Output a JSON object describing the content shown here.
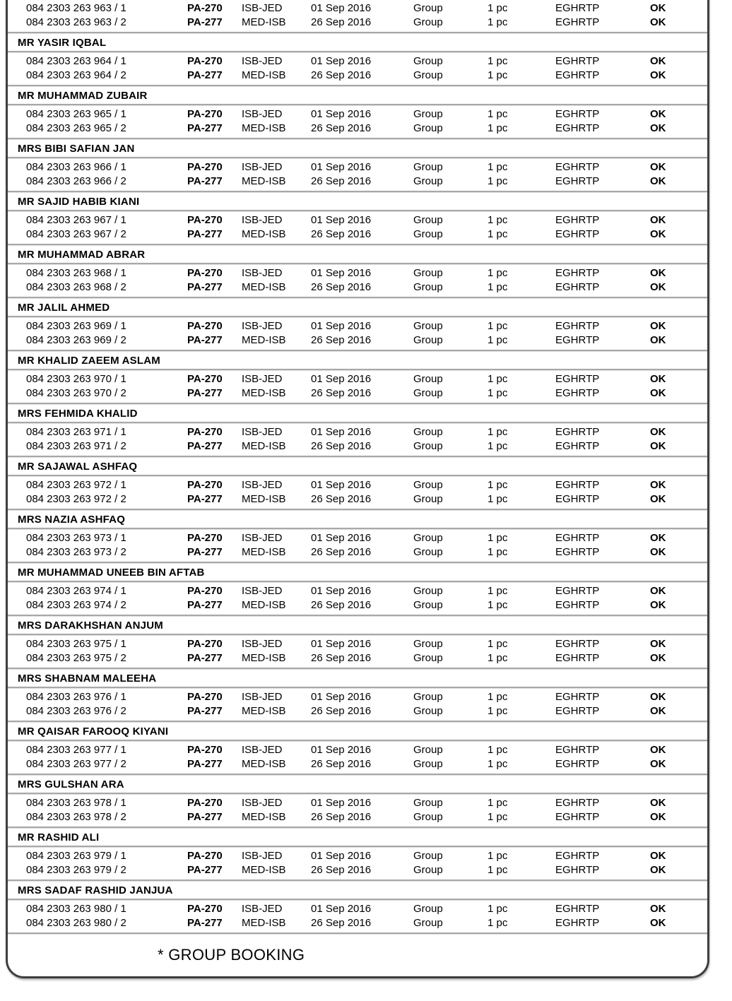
{
  "document": {
    "footer_note": "* GROUP BOOKING",
    "sections": [
      {
        "name": "",
        "rows": [
          {
            "ticket": "084 2303 263 963 / 1",
            "flight": "PA-270",
            "route": "ISB-JED",
            "date": "01 Sep 2016",
            "type": "Group",
            "pieces": "1 pc",
            "fare_basis": "EGHRTP",
            "status": "OK"
          },
          {
            "ticket": "084 2303 263 963 / 2",
            "flight": "PA-277",
            "route": "MED-ISB",
            "date": "26 Sep 2016",
            "type": "Group",
            "pieces": "1 pc",
            "fare_basis": "EGHRTP",
            "status": "OK"
          }
        ]
      },
      {
        "name": "MR YASIR IQBAL",
        "rows": [
          {
            "ticket": "084 2303 263 964 / 1",
            "flight": "PA-270",
            "route": "ISB-JED",
            "date": "01 Sep 2016",
            "type": "Group",
            "pieces": "1 pc",
            "fare_basis": "EGHRTP",
            "status": "OK"
          },
          {
            "ticket": "084 2303 263 964 / 2",
            "flight": "PA-277",
            "route": "MED-ISB",
            "date": "26 Sep 2016",
            "type": "Group",
            "pieces": "1 pc",
            "fare_basis": "EGHRTP",
            "status": "OK"
          }
        ]
      },
      {
        "name": "MR MUHAMMAD ZUBAIR",
        "rows": [
          {
            "ticket": "084 2303 263 965 / 1",
            "flight": "PA-270",
            "route": "ISB-JED",
            "date": "01 Sep 2016",
            "type": "Group",
            "pieces": "1 pc",
            "fare_basis": "EGHRTP",
            "status": "OK"
          },
          {
            "ticket": "084 2303 263 965 / 2",
            "flight": "PA-277",
            "route": "MED-ISB",
            "date": "26 Sep 2016",
            "type": "Group",
            "pieces": "1 pc",
            "fare_basis": "EGHRTP",
            "status": "OK"
          }
        ]
      },
      {
        "name": "MRS BIBI SAFIAN JAN",
        "rows": [
          {
            "ticket": "084 2303 263 966 / 1",
            "flight": "PA-270",
            "route": "ISB-JED",
            "date": "01 Sep 2016",
            "type": "Group",
            "pieces": "1 pc",
            "fare_basis": "EGHRTP",
            "status": "OK"
          },
          {
            "ticket": "084 2303 263 966 / 2",
            "flight": "PA-277",
            "route": "MED-ISB",
            "date": "26 Sep 2016",
            "type": "Group",
            "pieces": "1 pc",
            "fare_basis": "EGHRTP",
            "status": "OK"
          }
        ]
      },
      {
        "name": "MR SAJID HABIB KIANI",
        "rows": [
          {
            "ticket": "084 2303 263 967 / 1",
            "flight": "PA-270",
            "route": "ISB-JED",
            "date": "01 Sep 2016",
            "type": "Group",
            "pieces": "1 pc",
            "fare_basis": "EGHRTP",
            "status": "OK"
          },
          {
            "ticket": "084 2303 263 967 / 2",
            "flight": "PA-277",
            "route": "MED-ISB",
            "date": "26 Sep 2016",
            "type": "Group",
            "pieces": "1 pc",
            "fare_basis": "EGHRTP",
            "status": "OK"
          }
        ]
      },
      {
        "name": "MR MUHAMMAD ABRAR",
        "rows": [
          {
            "ticket": "084 2303 263 968 / 1",
            "flight": "PA-270",
            "route": "ISB-JED",
            "date": "01 Sep 2016",
            "type": "Group",
            "pieces": "1 pc",
            "fare_basis": "EGHRTP",
            "status": "OK"
          },
          {
            "ticket": "084 2303 263 968 / 2",
            "flight": "PA-277",
            "route": "MED-ISB",
            "date": "26 Sep 2016",
            "type": "Group",
            "pieces": "1 pc",
            "fare_basis": "EGHRTP",
            "status": "OK"
          }
        ]
      },
      {
        "name": "MR JALIL AHMED",
        "rows": [
          {
            "ticket": "084 2303 263 969 / 1",
            "flight": "PA-270",
            "route": "ISB-JED",
            "date": "01 Sep 2016",
            "type": "Group",
            "pieces": "1 pc",
            "fare_basis": "EGHRTP",
            "status": "OK"
          },
          {
            "ticket": "084 2303 263 969 / 2",
            "flight": "PA-277",
            "route": "MED-ISB",
            "date": "26 Sep 2016",
            "type": "Group",
            "pieces": "1 pc",
            "fare_basis": "EGHRTP",
            "status": "OK"
          }
        ]
      },
      {
        "name": "MR KHALID ZAEEM ASLAM",
        "rows": [
          {
            "ticket": "084 2303 263 970 / 1",
            "flight": "PA-270",
            "route": "ISB-JED",
            "date": "01 Sep 2016",
            "type": "Group",
            "pieces": "1 pc",
            "fare_basis": "EGHRTP",
            "status": "OK"
          },
          {
            "ticket": "084 2303 263 970 / 2",
            "flight": "PA-277",
            "route": "MED-ISB",
            "date": "26 Sep 2016",
            "type": "Group",
            "pieces": "1 pc",
            "fare_basis": "EGHRTP",
            "status": "OK"
          }
        ]
      },
      {
        "name": "MRS FEHMIDA KHALID",
        "rows": [
          {
            "ticket": "084 2303 263 971 / 1",
            "flight": "PA-270",
            "route": "ISB-JED",
            "date": "01 Sep 2016",
            "type": "Group",
            "pieces": "1 pc",
            "fare_basis": "EGHRTP",
            "status": "OK"
          },
          {
            "ticket": "084 2303 263 971 / 2",
            "flight": "PA-277",
            "route": "MED-ISB",
            "date": "26 Sep 2016",
            "type": "Group",
            "pieces": "1 pc",
            "fare_basis": "EGHRTP",
            "status": "OK"
          }
        ]
      },
      {
        "name": "MR SAJAWAL ASHFAQ",
        "rows": [
          {
            "ticket": "084 2303 263 972 / 1",
            "flight": "PA-270",
            "route": "ISB-JED",
            "date": "01 Sep 2016",
            "type": "Group",
            "pieces": "1 pc",
            "fare_basis": "EGHRTP",
            "status": "OK"
          },
          {
            "ticket": "084 2303 263 972 / 2",
            "flight": "PA-277",
            "route": "MED-ISB",
            "date": "26 Sep 2016",
            "type": "Group",
            "pieces": "1 pc",
            "fare_basis": "EGHRTP",
            "status": "OK"
          }
        ]
      },
      {
        "name": "MRS NAZIA ASHFAQ",
        "rows": [
          {
            "ticket": "084 2303 263 973 / 1",
            "flight": "PA-270",
            "route": "ISB-JED",
            "date": "01 Sep 2016",
            "type": "Group",
            "pieces": "1 pc",
            "fare_basis": "EGHRTP",
            "status": "OK"
          },
          {
            "ticket": "084 2303 263 973 / 2",
            "flight": "PA-277",
            "route": "MED-ISB",
            "date": "26 Sep 2016",
            "type": "Group",
            "pieces": "1 pc",
            "fare_basis": "EGHRTP",
            "status": "OK"
          }
        ]
      },
      {
        "name": "MR MUHAMMAD UNEEB BIN AFTAB",
        "rows": [
          {
            "ticket": "084 2303 263 974 / 1",
            "flight": "PA-270",
            "route": "ISB-JED",
            "date": "01 Sep 2016",
            "type": "Group",
            "pieces": "1 pc",
            "fare_basis": "EGHRTP",
            "status": "OK"
          },
          {
            "ticket": "084 2303 263 974 / 2",
            "flight": "PA-277",
            "route": "MED-ISB",
            "date": "26 Sep 2016",
            "type": "Group",
            "pieces": "1 pc",
            "fare_basis": "EGHRTP",
            "status": "OK"
          }
        ]
      },
      {
        "name": "MRS DARAKHSHAN ANJUM",
        "rows": [
          {
            "ticket": "084 2303 263 975 / 1",
            "flight": "PA-270",
            "route": "ISB-JED",
            "date": "01 Sep 2016",
            "type": "Group",
            "pieces": "1 pc",
            "fare_basis": "EGHRTP",
            "status": "OK"
          },
          {
            "ticket": "084 2303 263 975 / 2",
            "flight": "PA-277",
            "route": "MED-ISB",
            "date": "26 Sep 2016",
            "type": "Group",
            "pieces": "1 pc",
            "fare_basis": "EGHRTP",
            "status": "OK"
          }
        ]
      },
      {
        "name": "MRS SHABNAM MALEEHA",
        "rows": [
          {
            "ticket": "084 2303 263 976 / 1",
            "flight": "PA-270",
            "route": "ISB-JED",
            "date": "01 Sep 2016",
            "type": "Group",
            "pieces": "1 pc",
            "fare_basis": "EGHRTP",
            "status": "OK"
          },
          {
            "ticket": "084 2303 263 976 / 2",
            "flight": "PA-277",
            "route": "MED-ISB",
            "date": "26 Sep 2016",
            "type": "Group",
            "pieces": "1 pc",
            "fare_basis": "EGHRTP",
            "status": "OK"
          }
        ]
      },
      {
        "name": "MR QAISAR FAROOQ KIYANI",
        "rows": [
          {
            "ticket": "084 2303 263 977 / 1",
            "flight": "PA-270",
            "route": "ISB-JED",
            "date": "01 Sep 2016",
            "type": "Group",
            "pieces": "1 pc",
            "fare_basis": "EGHRTP",
            "status": "OK"
          },
          {
            "ticket": "084 2303 263 977 / 2",
            "flight": "PA-277",
            "route": "MED-ISB",
            "date": "26 Sep 2016",
            "type": "Group",
            "pieces": "1 pc",
            "fare_basis": "EGHRTP",
            "status": "OK"
          }
        ]
      },
      {
        "name": "MRS GULSHAN ARA",
        "rows": [
          {
            "ticket": "084 2303 263 978 / 1",
            "flight": "PA-270",
            "route": "ISB-JED",
            "date": "01 Sep 2016",
            "type": "Group",
            "pieces": "1 pc",
            "fare_basis": "EGHRTP",
            "status": "OK"
          },
          {
            "ticket": "084 2303 263 978 / 2",
            "flight": "PA-277",
            "route": "MED-ISB",
            "date": "26 Sep 2016",
            "type": "Group",
            "pieces": "1 pc",
            "fare_basis": "EGHRTP",
            "status": "OK"
          }
        ]
      },
      {
        "name": "MR RASHID ALI",
        "rows": [
          {
            "ticket": "084 2303 263 979 / 1",
            "flight": "PA-270",
            "route": "ISB-JED",
            "date": "01 Sep 2016",
            "type": "Group",
            "pieces": "1 pc",
            "fare_basis": "EGHRTP",
            "status": "OK"
          },
          {
            "ticket": "084 2303 263 979 / 2",
            "flight": "PA-277",
            "route": "MED-ISB",
            "date": "26 Sep 2016",
            "type": "Group",
            "pieces": "1 pc",
            "fare_basis": "EGHRTP",
            "status": "OK"
          }
        ]
      },
      {
        "name": "MRS SADAF RASHID JANJUA",
        "rows": [
          {
            "ticket": "084 2303 263 980 / 1",
            "flight": "PA-270",
            "route": "ISB-JED",
            "date": "01 Sep 2016",
            "type": "Group",
            "pieces": "1 pc",
            "fare_basis": "EGHRTP",
            "status": "OK"
          },
          {
            "ticket": "084 2303 263 980 / 2",
            "flight": "PA-277",
            "route": "MED-ISB",
            "date": "26 Sep 2016",
            "type": "Group",
            "pieces": "1 pc",
            "fare_basis": "EGHRTP",
            "status": "OK"
          }
        ]
      }
    ]
  }
}
